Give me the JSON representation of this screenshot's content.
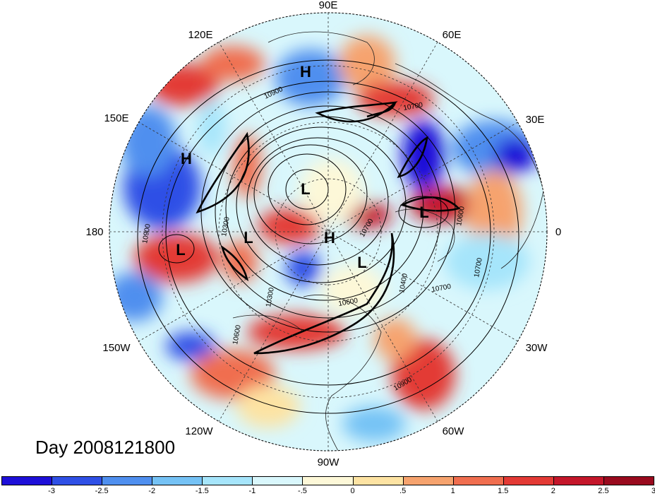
{
  "title": "Day 2008121800",
  "longitude_labels": [
    {
      "id": "lon-90e",
      "text": "90E"
    },
    {
      "id": "lon-60e",
      "text": "60E"
    },
    {
      "id": "lon-30e",
      "text": "30E"
    },
    {
      "id": "lon-0",
      "text": "0"
    },
    {
      "id": "lon-30w",
      "text": "30W"
    },
    {
      "id": "lon-60w",
      "text": "60W"
    },
    {
      "id": "lon-90w",
      "text": "90W"
    },
    {
      "id": "lon-120w",
      "text": "120W"
    },
    {
      "id": "lon-150w",
      "text": "150W"
    },
    {
      "id": "lon-180",
      "text": "180"
    },
    {
      "id": "lon-150e",
      "text": "150E"
    },
    {
      "id": "lon-120e",
      "text": "120E"
    }
  ],
  "pressure_centers": [
    {
      "type": "H",
      "text": "H"
    },
    {
      "type": "H",
      "text": "H"
    },
    {
      "type": "H",
      "text": "H"
    },
    {
      "type": "L",
      "text": "L"
    },
    {
      "type": "L",
      "text": "L"
    },
    {
      "type": "L",
      "text": "L"
    },
    {
      "type": "L",
      "text": "L"
    },
    {
      "type": "L",
      "text": "L"
    }
  ],
  "contour_labels": [
    "10900",
    "10700",
    "10300",
    "10900",
    "10600",
    "10300",
    "10700",
    "10600",
    "10700",
    "10400",
    "10600",
    "10700",
    "10900"
  ],
  "colorbar": {
    "colors": [
      "#1e0fd8",
      "#2f50e6",
      "#4f8fef",
      "#75c2f5",
      "#a6e5fb",
      "#d9f7fc",
      "#fdf8d8",
      "#fde3a3",
      "#f6a36e",
      "#f06e4f",
      "#e33a35",
      "#c4162a",
      "#990a1e"
    ],
    "labels": [
      "-3",
      "-2.5",
      "-2",
      "-1.5",
      "-1",
      "-.5",
      "0",
      ".5",
      "1",
      "1.5",
      "2",
      "2.5",
      "3"
    ]
  }
}
